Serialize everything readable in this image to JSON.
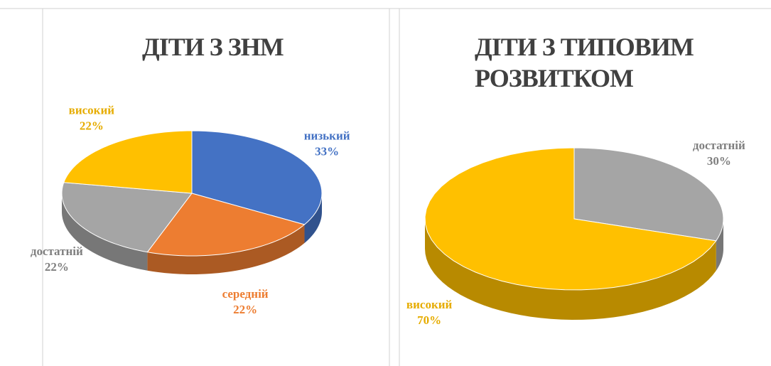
{
  "chart_data": [
    {
      "type": "pie",
      "title": "ДІТИ З ЗНМ",
      "categories": [
        "низький",
        "середній",
        "достатній",
        "високий"
      ],
      "values": [
        33,
        22,
        22,
        22
      ],
      "value_labels": [
        "33%",
        "22%",
        "22%",
        "22%"
      ],
      "colors": [
        "#4472c4",
        "#ed7d31",
        "#a5a5a5",
        "#ffc000"
      ]
    },
    {
      "type": "pie",
      "title": "ДІТИ З ТИПОВИМ РОЗВИТКОМ",
      "categories": [
        "достатній",
        "високий"
      ],
      "values": [
        30,
        70
      ],
      "value_labels": [
        "30%",
        "70%"
      ],
      "colors": [
        "#a5a5a5",
        "#ffc000"
      ]
    }
  ]
}
